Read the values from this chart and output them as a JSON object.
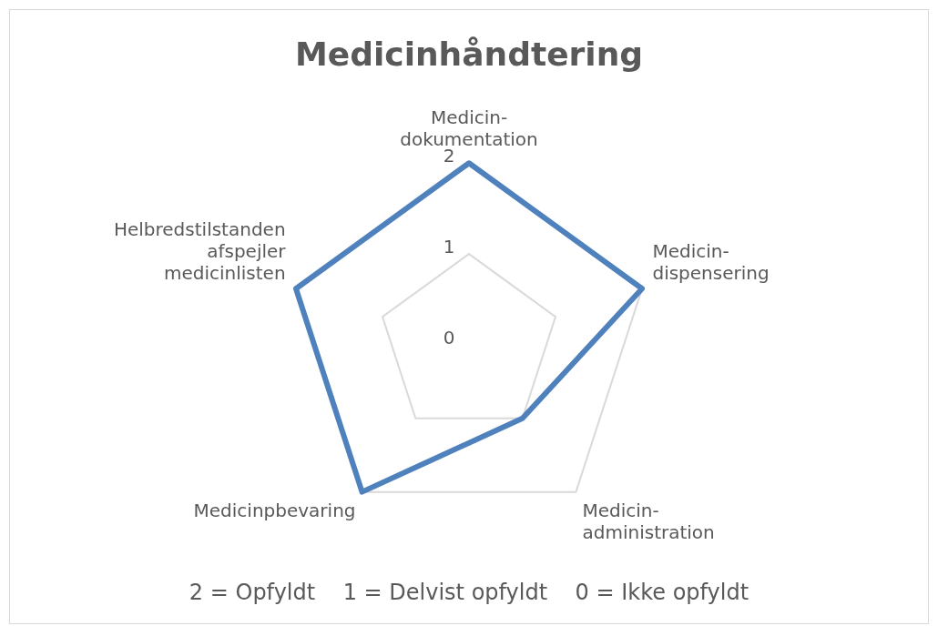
{
  "chart_data": {
    "type": "radar",
    "title": "Medicinhåndtering",
    "categories": [
      "Medicin-\ndokumentation",
      "Medicin-\ndispensering",
      "Medicin-\nadministration",
      "Medicinpbevaring",
      "Helbredstilstanden\nafspejler\nmedicinlisten"
    ],
    "series": [
      {
        "color": "#4f81bd",
        "values": [
          2,
          2,
          1,
          2,
          2
        ]
      }
    ],
    "ylim": [
      0,
      2
    ],
    "yticks": [
      0,
      1,
      2
    ],
    "grid": true,
    "legend": false,
    "marker": "none",
    "line_style": "solid",
    "annotations": [
      "2 = Opfyldt    1 = Delvist opfyldt    0 = Ikke opfyldt"
    ]
  }
}
